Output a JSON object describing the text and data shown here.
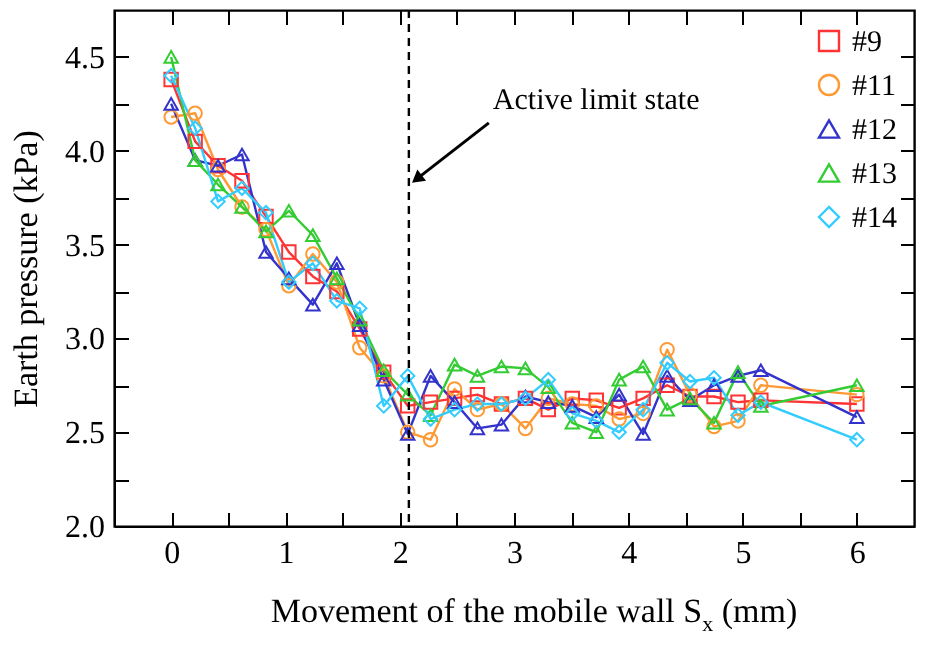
{
  "chart_data": {
    "type": "line",
    "xlabel": "Movement of the mobile wall S$_{x}$ (mm)",
    "ylabel": "Earth pressure (kPa)",
    "x": [
      0,
      0.21,
      0.41,
      0.62,
      0.83,
      1.03,
      1.24,
      1.45,
      1.65,
      1.86,
      2.07,
      2.27,
      2.48,
      2.68,
      2.89,
      3.1,
      3.3,
      3.51,
      3.72,
      3.92,
      4.13,
      4.34,
      4.54,
      4.75,
      4.96,
      5.16,
      6.0
    ],
    "series": [
      {
        "name": "#9",
        "color": "#ff3333",
        "marker": "square",
        "values": [
          4.38,
          4.05,
          3.92,
          3.84,
          3.65,
          3.46,
          3.33,
          3.25,
          3.05,
          2.82,
          2.64,
          2.66,
          2.68,
          2.7,
          2.65,
          2.68,
          2.62,
          2.68,
          2.67,
          2.63,
          2.68,
          2.75,
          2.69,
          2.69,
          2.66,
          2.67,
          2.65
        ]
      },
      {
        "name": "#11",
        "color": "#ff9933",
        "marker": "circle",
        "values": [
          4.18,
          4.2,
          3.9,
          3.7,
          3.58,
          3.28,
          3.45,
          3.3,
          2.95,
          2.8,
          2.5,
          2.46,
          2.73,
          2.62,
          2.65,
          2.52,
          2.68,
          2.65,
          2.64,
          2.57,
          2.6,
          2.94,
          2.7,
          2.53,
          2.56,
          2.75,
          2.7
        ]
      },
      {
        "name": "#12",
        "color": "#3333cc",
        "marker": "triangle",
        "values": [
          4.25,
          3.95,
          3.92,
          3.98,
          3.46,
          3.32,
          3.18,
          3.4,
          3.07,
          2.78,
          2.49,
          2.8,
          2.66,
          2.52,
          2.54,
          2.69,
          2.66,
          2.64,
          2.58,
          2.7,
          2.49,
          2.8,
          2.67,
          2.75,
          2.8,
          2.83,
          2.58
        ]
      },
      {
        "name": "#13",
        "color": "#33cc33",
        "marker": "triangle",
        "values": [
          4.5,
          3.95,
          3.82,
          3.7,
          3.57,
          3.68,
          3.55,
          3.32,
          3.1,
          2.83,
          2.7,
          2.59,
          2.86,
          2.8,
          2.85,
          2.84,
          2.74,
          2.55,
          2.5,
          2.78,
          2.85,
          2.62,
          2.68,
          2.55,
          2.82,
          2.64,
          2.75
        ]
      },
      {
        "name": "#14",
        "color": "#33ccff",
        "marker": "diamond",
        "values": [
          4.4,
          4.12,
          3.73,
          3.8,
          3.67,
          3.3,
          3.4,
          3.2,
          3.16,
          2.64,
          2.8,
          2.57,
          2.62,
          2.65,
          2.65,
          2.68,
          2.78,
          2.6,
          2.56,
          2.5,
          2.62,
          2.87,
          2.77,
          2.79,
          2.59,
          2.66,
          2.46
        ]
      }
    ],
    "xlim": [
      -0.5,
      6.5
    ],
    "xticks": [
      0,
      {
        "value": 0.5,
        "label": null
      },
      1,
      {
        "value": 1.5,
        "label": null
      },
      2,
      {
        "value": 2.5,
        "label": null
      },
      3,
      {
        "value": 3.5,
        "label": null
      },
      4,
      {
        "value": 4.5,
        "label": null
      },
      5,
      {
        "value": 5.5,
        "label": null
      },
      6
    ],
    "ylim": [
      2.0,
      4.75
    ],
    "yticks": [
      {
        "value": 2,
        "label": "2.0"
      },
      {
        "value": 2.25,
        "label": null
      },
      {
        "value": 2.5,
        "label": "2.5"
      },
      {
        "value": 2.75,
        "label": null
      },
      {
        "value": 3,
        "label": "3.0"
      },
      {
        "value": 3.25,
        "label": null
      },
      {
        "value": 3.5,
        "label": "3.5"
      },
      {
        "value": 3.75,
        "label": null
      },
      {
        "value": 4,
        "label": "4.0"
      },
      {
        "value": 4.25,
        "label": null
      },
      {
        "value": 4.5,
        "label": "4.5"
      }
    ],
    "ref_lines": [
      {
        "axis": "x",
        "value": 2.08,
        "color": "#000000",
        "line_style": "dashed"
      }
    ],
    "annotations": [
      {
        "text": "Active limit state",
        "x": 2.08,
        "y": 3.85
      }
    ],
    "legend": "top right",
    "grid": false
  }
}
